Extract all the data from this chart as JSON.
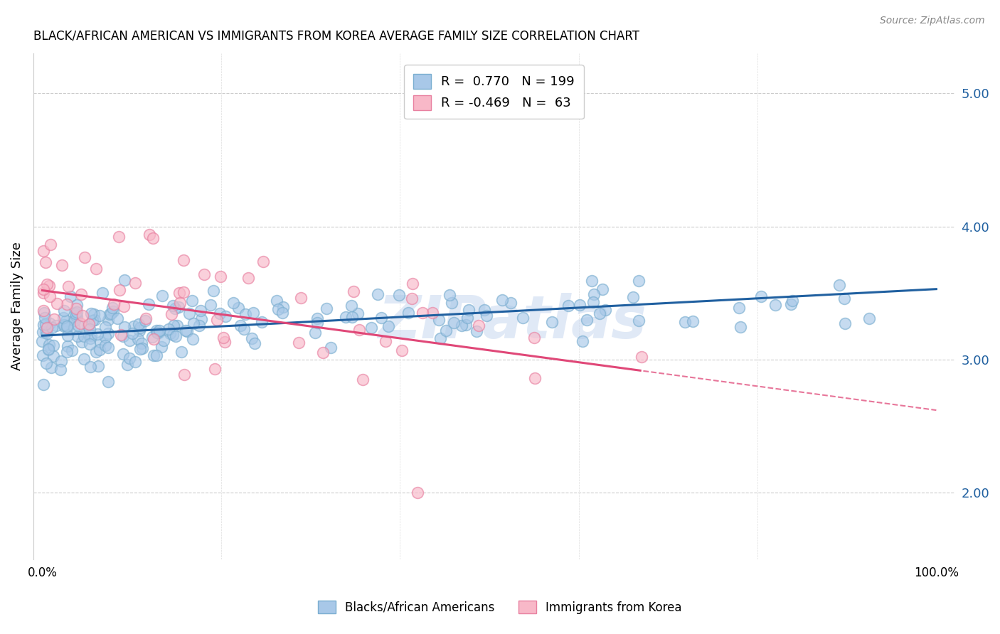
{
  "title": "BLACK/AFRICAN AMERICAN VS IMMIGRANTS FROM KOREA AVERAGE FAMILY SIZE CORRELATION CHART",
  "source": "Source: ZipAtlas.com",
  "ylabel": "Average Family Size",
  "yticks": [
    2.0,
    3.0,
    4.0,
    5.0
  ],
  "blue_color": "#a8c8e8",
  "blue_edge_color": "#7aaed0",
  "pink_color": "#f8b8c8",
  "pink_edge_color": "#e880a0",
  "blue_line_color": "#2060a0",
  "pink_line_color": "#e04878",
  "blue_r": 0.77,
  "blue_n": 199,
  "pink_r": -0.469,
  "pink_n": 63,
  "blue_intercept": 3.18,
  "blue_slope": 0.35,
  "pink_intercept": 3.52,
  "pink_slope": -0.9,
  "watermark_text": "ZIPatlas",
  "watermark_color": "#c8d8f0",
  "figsize": [
    14.06,
    8.92
  ],
  "dpi": 100
}
